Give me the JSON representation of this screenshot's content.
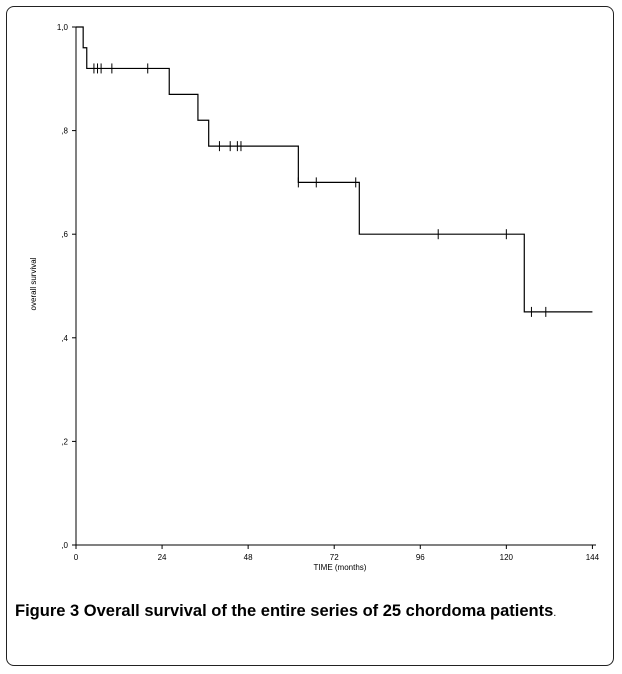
{
  "chart_data": {
    "type": "line",
    "step": true,
    "xlabel": "TIME (months)",
    "ylabel": "overall survival",
    "xlim": [
      0,
      145
    ],
    "ylim": [
      0,
      1.0
    ],
    "x_ticks": [
      0,
      24,
      48,
      72,
      96,
      120,
      144
    ],
    "x_tick_labels": [
      "0",
      "24",
      "48",
      "72",
      "96",
      "120",
      "144"
    ],
    "y_ticks": [
      0,
      0.2,
      0.4,
      0.6,
      0.8,
      1.0
    ],
    "y_tick_labels": [
      ",0",
      ",2",
      ",4",
      ",6",
      ",8",
      "1,0"
    ],
    "grid": false,
    "series": [
      {
        "steps": [
          {
            "x": 0,
            "y": 1.0
          },
          {
            "x": 2,
            "y": 0.96
          },
          {
            "x": 3,
            "y": 0.92
          },
          {
            "x": 26,
            "y": 0.87
          },
          {
            "x": 34,
            "y": 0.82
          },
          {
            "x": 37,
            "y": 0.77
          },
          {
            "x": 62,
            "y": 0.7
          },
          {
            "x": 79,
            "y": 0.6
          },
          {
            "x": 125,
            "y": 0.45
          },
          {
            "x": 144,
            "y": 0.45
          }
        ],
        "censored": [
          {
            "x": 5,
            "y": 0.92
          },
          {
            "x": 6,
            "y": 0.92
          },
          {
            "x": 7,
            "y": 0.92
          },
          {
            "x": 10,
            "y": 0.92
          },
          {
            "x": 20,
            "y": 0.92
          },
          {
            "x": 40,
            "y": 0.77
          },
          {
            "x": 43,
            "y": 0.77
          },
          {
            "x": 45,
            "y": 0.77
          },
          {
            "x": 46,
            "y": 0.77
          },
          {
            "x": 62,
            "y": 0.7
          },
          {
            "x": 67,
            "y": 0.7
          },
          {
            "x": 78,
            "y": 0.7
          },
          {
            "x": 101,
            "y": 0.6
          },
          {
            "x": 120,
            "y": 0.6
          },
          {
            "x": 127,
            "y": 0.45
          },
          {
            "x": 131,
            "y": 0.45
          }
        ]
      }
    ]
  },
  "caption": {
    "label": "Figure 3",
    "text": "Overall survival of the entire series of 25 chordoma patients",
    "end": "."
  }
}
